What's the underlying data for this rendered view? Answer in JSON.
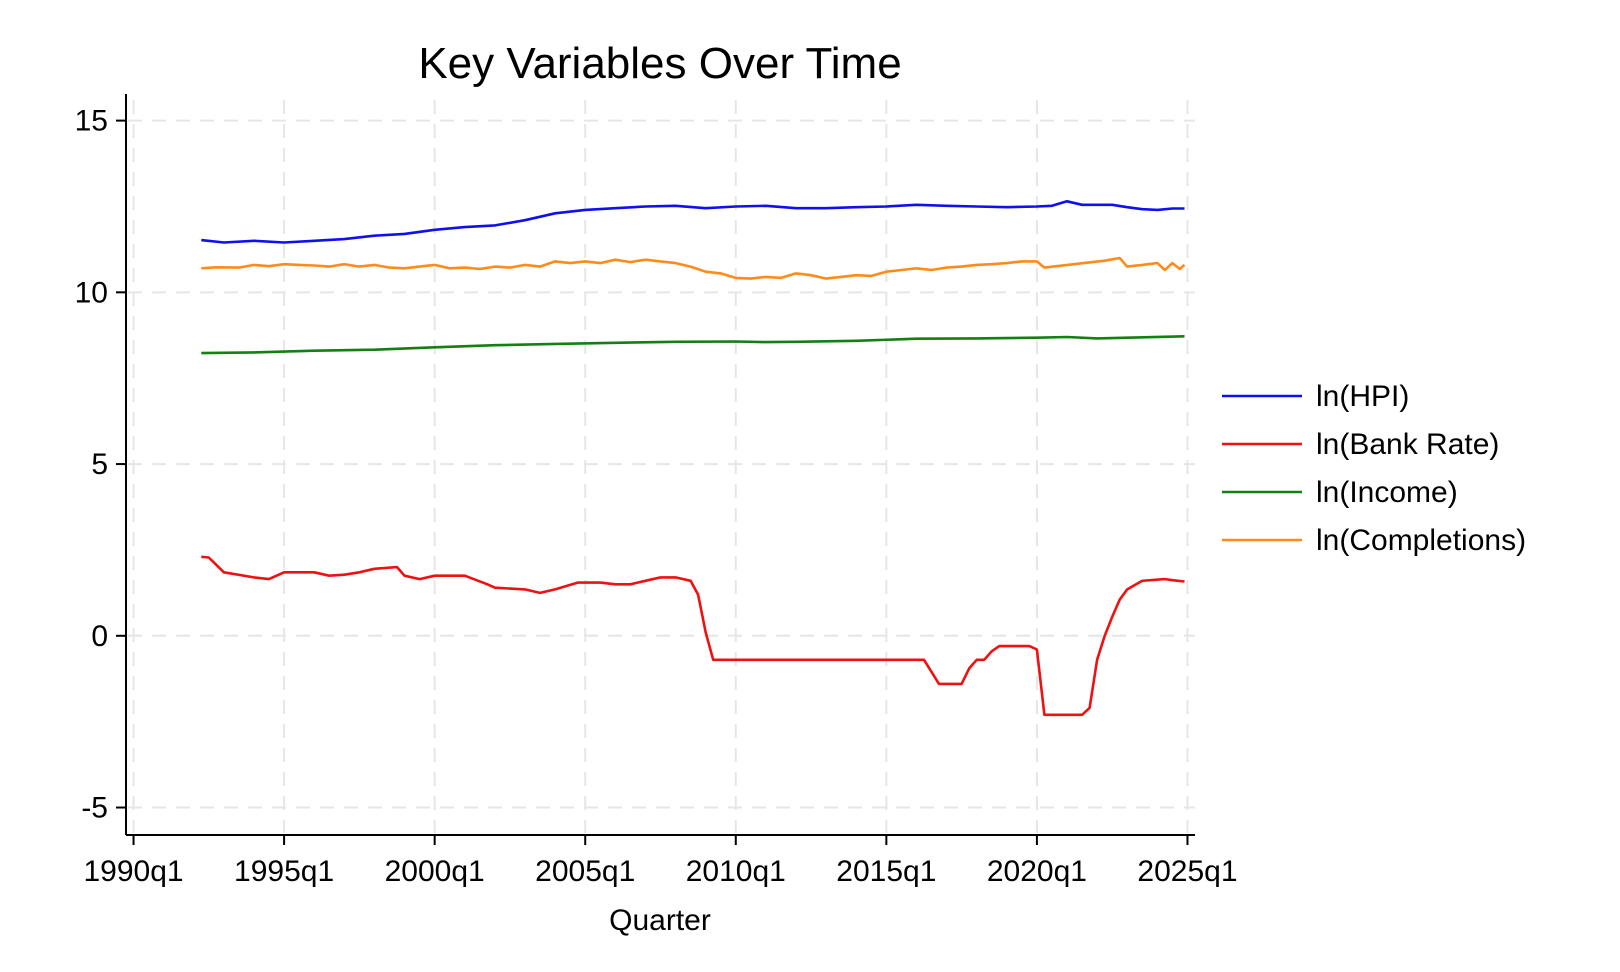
{
  "chart_data": {
    "type": "line",
    "title": "Key Variables Over Time",
    "xlabel": "Quarter",
    "ylabel": "",
    "ylim": [
      -5.8,
      15.6
    ],
    "yticks": [
      15,
      10,
      5,
      0,
      -5
    ],
    "xlim": [
      1989.75,
      2025.25
    ],
    "xticks": [
      {
        "x": 1990,
        "label": "1990q1"
      },
      {
        "x": 1995,
        "label": "1995q1"
      },
      {
        "x": 2000,
        "label": "2000q1"
      },
      {
        "x": 2005,
        "label": "2005q1"
      },
      {
        "x": 2010,
        "label": "2010q1"
      },
      {
        "x": 2015,
        "label": "2015q1"
      },
      {
        "x": 2020,
        "label": "2020q1"
      },
      {
        "x": 2025,
        "label": "2025q1"
      }
    ],
    "grid": true,
    "legend_position": "right",
    "series": [
      {
        "name": "ln(HPI)",
        "color": "#1010ee",
        "points": [
          [
            1992.25,
            11.52
          ],
          [
            1993.0,
            11.45
          ],
          [
            1994.0,
            11.5
          ],
          [
            1995.0,
            11.45
          ],
          [
            1996.0,
            11.5
          ],
          [
            1997.0,
            11.55
          ],
          [
            1998.0,
            11.65
          ],
          [
            1999.0,
            11.7
          ],
          [
            2000.0,
            11.82
          ],
          [
            2001.0,
            11.9
          ],
          [
            2002.0,
            11.95
          ],
          [
            2003.0,
            12.1
          ],
          [
            2004.0,
            12.3
          ],
          [
            2005.0,
            12.4
          ],
          [
            2006.0,
            12.45
          ],
          [
            2007.0,
            12.5
          ],
          [
            2008.0,
            12.52
          ],
          [
            2009.0,
            12.45
          ],
          [
            2010.0,
            12.5
          ],
          [
            2011.0,
            12.52
          ],
          [
            2012.0,
            12.45
          ],
          [
            2013.0,
            12.45
          ],
          [
            2014.0,
            12.48
          ],
          [
            2015.0,
            12.5
          ],
          [
            2016.0,
            12.55
          ],
          [
            2017.0,
            12.52
          ],
          [
            2018.0,
            12.5
          ],
          [
            2019.0,
            12.48
          ],
          [
            2020.0,
            12.5
          ],
          [
            2020.5,
            12.52
          ],
          [
            2021.0,
            12.65
          ],
          [
            2021.5,
            12.55
          ],
          [
            2022.0,
            12.55
          ],
          [
            2022.5,
            12.55
          ],
          [
            2023.0,
            12.48
          ],
          [
            2023.5,
            12.42
          ],
          [
            2024.0,
            12.4
          ],
          [
            2024.5,
            12.44
          ],
          [
            2024.9,
            12.44
          ]
        ]
      },
      {
        "name": "ln(Bank Rate)",
        "color": "#ee1111",
        "points": [
          [
            1992.25,
            2.3
          ],
          [
            1992.5,
            2.28
          ],
          [
            1993.0,
            1.85
          ],
          [
            1994.0,
            1.7
          ],
          [
            1994.5,
            1.65
          ],
          [
            1995.0,
            1.85
          ],
          [
            1996.0,
            1.85
          ],
          [
            1996.5,
            1.75
          ],
          [
            1997.0,
            1.78
          ],
          [
            1997.5,
            1.85
          ],
          [
            1998.0,
            1.95
          ],
          [
            1998.75,
            2.0
          ],
          [
            1999.0,
            1.75
          ],
          [
            1999.5,
            1.65
          ],
          [
            2000.0,
            1.75
          ],
          [
            2001.0,
            1.75
          ],
          [
            2001.75,
            1.5
          ],
          [
            2002.0,
            1.4
          ],
          [
            2003.0,
            1.35
          ],
          [
            2003.5,
            1.25
          ],
          [
            2004.0,
            1.35
          ],
          [
            2004.75,
            1.55
          ],
          [
            2005.5,
            1.55
          ],
          [
            2006.0,
            1.5
          ],
          [
            2006.5,
            1.5
          ],
          [
            2007.0,
            1.6
          ],
          [
            2007.5,
            1.7
          ],
          [
            2008.0,
            1.7
          ],
          [
            2008.5,
            1.6
          ],
          [
            2008.75,
            1.2
          ],
          [
            2009.0,
            0.1
          ],
          [
            2009.25,
            -0.7
          ],
          [
            2016.25,
            -0.7
          ],
          [
            2016.75,
            -1.4
          ],
          [
            2017.5,
            -1.4
          ],
          [
            2017.75,
            -0.95
          ],
          [
            2018.0,
            -0.7
          ],
          [
            2018.25,
            -0.7
          ],
          [
            2018.5,
            -0.45
          ],
          [
            2018.75,
            -0.3
          ],
          [
            2019.75,
            -0.3
          ],
          [
            2020.0,
            -0.4
          ],
          [
            2020.25,
            -2.3
          ],
          [
            2021.5,
            -2.3
          ],
          [
            2021.75,
            -2.1
          ],
          [
            2022.0,
            -0.7
          ],
          [
            2022.25,
            0.0
          ],
          [
            2022.5,
            0.55
          ],
          [
            2022.75,
            1.05
          ],
          [
            2023.0,
            1.35
          ],
          [
            2023.5,
            1.6
          ],
          [
            2024.25,
            1.65
          ],
          [
            2024.5,
            1.62
          ],
          [
            2024.9,
            1.58
          ]
        ]
      },
      {
        "name": "ln(Income)",
        "color": "#128012",
        "points": [
          [
            1992.25,
            8.23
          ],
          [
            1994.0,
            8.25
          ],
          [
            1996.0,
            8.3
          ],
          [
            1998.0,
            8.33
          ],
          [
            2000.0,
            8.4
          ],
          [
            2002.0,
            8.46
          ],
          [
            2004.0,
            8.5
          ],
          [
            2006.0,
            8.53
          ],
          [
            2008.0,
            8.56
          ],
          [
            2010.0,
            8.57
          ],
          [
            2011.0,
            8.55
          ],
          [
            2012.0,
            8.56
          ],
          [
            2014.0,
            8.59
          ],
          [
            2016.0,
            8.65
          ],
          [
            2018.0,
            8.66
          ],
          [
            2020.0,
            8.68
          ],
          [
            2021.0,
            8.7
          ],
          [
            2022.0,
            8.66
          ],
          [
            2023.0,
            8.68
          ],
          [
            2024.9,
            8.72
          ]
        ]
      },
      {
        "name": "ln(Completions)",
        "color": "#ff8c1a",
        "points": [
          [
            1992.25,
            10.7
          ],
          [
            1992.75,
            10.73
          ],
          [
            1993.5,
            10.72
          ],
          [
            1994.0,
            10.8
          ],
          [
            1994.5,
            10.76
          ],
          [
            1995.0,
            10.82
          ],
          [
            1995.5,
            10.8
          ],
          [
            1996.0,
            10.78
          ],
          [
            1996.5,
            10.75
          ],
          [
            1997.0,
            10.82
          ],
          [
            1997.5,
            10.75
          ],
          [
            1998.0,
            10.8
          ],
          [
            1998.5,
            10.72
          ],
          [
            1999.0,
            10.7
          ],
          [
            1999.5,
            10.75
          ],
          [
            2000.0,
            10.8
          ],
          [
            2000.5,
            10.7
          ],
          [
            2001.0,
            10.72
          ],
          [
            2001.5,
            10.68
          ],
          [
            2002.0,
            10.75
          ],
          [
            2002.5,
            10.72
          ],
          [
            2003.0,
            10.8
          ],
          [
            2003.5,
            10.75
          ],
          [
            2004.0,
            10.9
          ],
          [
            2004.5,
            10.85
          ],
          [
            2005.0,
            10.9
          ],
          [
            2005.5,
            10.85
          ],
          [
            2006.0,
            10.95
          ],
          [
            2006.5,
            10.88
          ],
          [
            2007.0,
            10.95
          ],
          [
            2007.5,
            10.9
          ],
          [
            2008.0,
            10.85
          ],
          [
            2008.5,
            10.75
          ],
          [
            2009.0,
            10.6
          ],
          [
            2009.5,
            10.55
          ],
          [
            2010.0,
            10.42
          ],
          [
            2010.5,
            10.4
          ],
          [
            2011.0,
            10.45
          ],
          [
            2011.5,
            10.42
          ],
          [
            2012.0,
            10.55
          ],
          [
            2012.5,
            10.5
          ],
          [
            2013.0,
            10.4
          ],
          [
            2013.5,
            10.45
          ],
          [
            2014.0,
            10.5
          ],
          [
            2014.5,
            10.48
          ],
          [
            2015.0,
            10.6
          ],
          [
            2015.5,
            10.65
          ],
          [
            2016.0,
            10.7
          ],
          [
            2016.5,
            10.65
          ],
          [
            2017.0,
            10.72
          ],
          [
            2017.5,
            10.75
          ],
          [
            2018.0,
            10.8
          ],
          [
            2018.5,
            10.82
          ],
          [
            2019.0,
            10.85
          ],
          [
            2019.5,
            10.9
          ],
          [
            2020.0,
            10.9
          ],
          [
            2020.25,
            10.72
          ],
          [
            2022.25,
            10.92
          ],
          [
            2022.75,
            11.0
          ],
          [
            2023.0,
            10.75
          ],
          [
            2023.5,
            10.8
          ],
          [
            2024.0,
            10.85
          ],
          [
            2024.25,
            10.65
          ],
          [
            2024.5,
            10.85
          ],
          [
            2024.75,
            10.68
          ],
          [
            2024.9,
            10.8
          ]
        ]
      }
    ]
  }
}
